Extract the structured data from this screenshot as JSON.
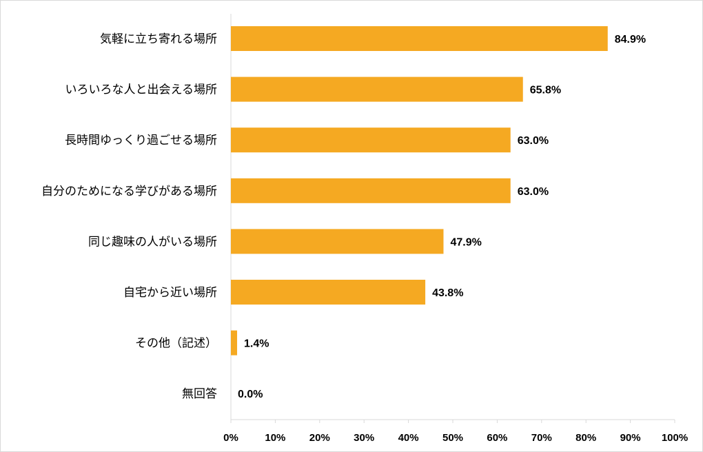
{
  "chart_data": {
    "type": "bar",
    "orientation": "horizontal",
    "categories": [
      "気軽に立ち寄れる場所",
      "いろいろな人と出会える場所",
      "長時間ゆっくり過ごせる場所",
      "自分のためになる学びがある場所",
      "同じ趣味の人がいる場所",
      "自宅から近い場所",
      "その他（記述）",
      "無回答"
    ],
    "values": [
      84.9,
      65.8,
      63.0,
      63.0,
      47.9,
      43.8,
      1.4,
      0.0
    ],
    "value_labels": [
      "84.9%",
      "65.8%",
      "63.0%",
      "63.0%",
      "47.9%",
      "43.8%",
      "1.4%",
      "0.0%"
    ],
    "xlim": [
      0,
      100
    ],
    "xticks": [
      "0%",
      "10%",
      "20%",
      "30%",
      "40%",
      "50%",
      "60%",
      "70%",
      "80%",
      "90%",
      "100%"
    ],
    "grid": false,
    "bar_color": "#F5A922"
  }
}
